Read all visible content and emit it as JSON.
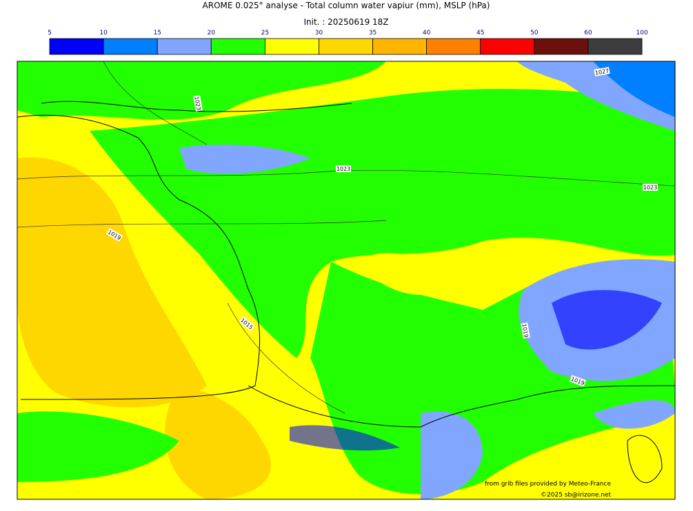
{
  "header": {
    "title": "AROME 0.025° analyse - Total column water vapiur (mm), MSLP (hPa)",
    "init": "Init. : 20250619 18Z"
  },
  "colorbar": {
    "ticks": [
      5,
      10,
      15,
      20,
      25,
      30,
      35,
      40,
      45,
      50,
      60,
      100
    ],
    "colors": [
      "#0000ff",
      "#0080ff",
      "#80a6ff",
      "#22ff00",
      "#ffff00",
      "#ffd700",
      "#ffb400",
      "#ff8000",
      "#ff0000",
      "#6b100b",
      "#3c3c3c"
    ]
  },
  "isobar_labels": [
    "1027",
    "1023",
    "1023",
    "1023",
    "1019",
    "1015",
    "1019",
    "1019"
  ],
  "credits": {
    "source": "from grib files provided by Meteo-France",
    "copyright": "©2025 sb@irizone.net"
  }
}
